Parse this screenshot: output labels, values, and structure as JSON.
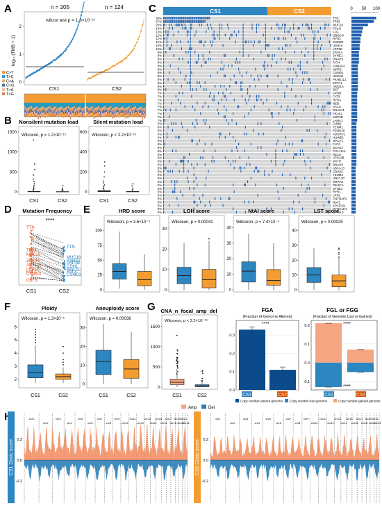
{
  "colors": {
    "cs1": "#2E86C1",
    "cs2": "#F39C32",
    "cs1_dark": "#0B4A8B",
    "cs2_dark": "#D35400",
    "amp": "#F4A582",
    "del": "#2C7FB8"
  },
  "panels": {
    "A": {
      "letter": "A",
      "n_cs1": "n = 205",
      "n_cs2": "n = 124",
      "stat": "wilcox test p = 1.6×10⁻¹²",
      "ylabel": "log₁₀ (TMB + 1)",
      "yticks": [
        "0",
        "1",
        "2"
      ],
      "xlabels": [
        "CS1",
        "CS2"
      ],
      "legend": [
        {
          "label": "C>T",
          "color": "#F39C32"
        },
        {
          "label": "T>C",
          "color": "#1B9BC9"
        },
        {
          "label": "C>A",
          "color": "#E8A878"
        },
        {
          "label": "C>G",
          "color": "#4F6FA8"
        },
        {
          "label": "T>A",
          "color": "#F4B7A0"
        },
        {
          "label": "T>G",
          "color": "#DA7E49"
        }
      ]
    },
    "B": {
      "letter": "B",
      "left": {
        "title": "Nonsilent mutation load",
        "stat": "Wilcoxon, p = 1.2×10⁻¹⁵",
        "yticks": [
          "0",
          "500",
          "1000",
          "1500"
        ],
        "xlabels": [
          "CS1",
          "CS2"
        ]
      },
      "right": {
        "title": "Silent mutation load",
        "stat": "Wilcoxon, p < 2.2×10⁻¹⁶",
        "yticks": [
          "0",
          "200",
          "400",
          "600"
        ],
        "xlabels": [
          "CS1",
          "CS2"
        ]
      }
    },
    "C": {
      "letter": "C",
      "cs1": "CS1",
      "cs2": "CS2",
      "top_axis": [
        "0",
        "50",
        "100"
      ],
      "genes": [
        "TTN",
        "TP53",
        "MUC16",
        "PCLO",
        "FLG",
        "OBSCN",
        "RYR2",
        "CSMD3",
        "USH2A",
        "LRP1B",
        "ZFHX4",
        "SYNE1",
        "DNAH5",
        "FAT4",
        "AHNAK2",
        "XIRP2",
        "CSMD1",
        "HMCN1",
        "PKHD1L1",
        "SPTA1",
        "ARID1A",
        "DST",
        "APOB",
        "FAT3",
        "RYR3",
        "NEB",
        "SACS",
        "DNAH11",
        "FRAS1",
        "KMT2D",
        "LAMA1",
        "CUBN",
        "TENM1",
        "PCDH15",
        "ADGRV1",
        "HUWE1",
        "MACF1",
        "FLG2",
        "DCHS2",
        "COL11A1",
        "RELN",
        "VPS13B",
        "MYH7",
        "DNAH3",
        "ABCA13",
        "CDH23",
        "TENM3",
        "UNC13C",
        "MXRA5",
        "PIK3CA",
        "SYNE2",
        "RYR1",
        "LRP2",
        "CNTNAP2",
        "NAV3",
        "SPATA31",
        "DYNC1H1",
        "SPTAL1"
      ],
      "percents": [
        "30%",
        "27%",
        "20%",
        "14%",
        "13%",
        "12%",
        "11%",
        "11%",
        "10%",
        "10%",
        "9%",
        "9%",
        "9%",
        "9%",
        "8%",
        "8%",
        "8%",
        "8%",
        "8%",
        "8%",
        "8%",
        "8%",
        "7%",
        "7%",
        "7%",
        "7%",
        "7%",
        "7%",
        "7%",
        "7%",
        "7%",
        "6%",
        "6%",
        "6%",
        "6%",
        "6%",
        "6%",
        "6%",
        "6%",
        "6%",
        "6%",
        "6%",
        "6%",
        "6%",
        "5%",
        "5%",
        "5%",
        "5%",
        "5%",
        "5%",
        "5%",
        "5%",
        "5%",
        "5%",
        "5%",
        "5%",
        "5%",
        "5%"
      ],
      "counts": [
        99,
        89,
        66,
        46,
        43,
        40,
        36,
        36,
        33,
        33,
        30,
        30,
        30,
        30,
        26,
        26,
        26,
        26,
        26,
        26,
        26,
        26,
        23,
        23,
        23,
        23,
        23,
        23,
        23,
        23,
        23,
        20,
        20,
        20,
        20,
        20,
        20,
        20,
        20,
        20,
        20,
        20,
        20,
        20,
        17,
        17,
        17,
        17,
        17,
        17,
        17,
        17,
        17,
        17,
        17,
        17,
        17,
        17
      ]
    },
    "D": {
      "letter": "D",
      "title": "Mutation Frequency",
      "sig": "****",
      "xlabels": [
        "CS1",
        "CS2"
      ],
      "cs1_genes": [
        "TTN",
        "TP53",
        "MUC16",
        "ZFHX4",
        "ARID1A",
        "LRP1B",
        "FAT3",
        "CSMD3",
        "CBFB"
      ],
      "cs2_genes": [
        "TTN",
        "CDH1",
        "MUC16",
        "SYNE1",
        "LRP1B",
        "KMT2C",
        "FAT3",
        "CSMD3"
      ]
    },
    "E": {
      "letter": "E",
      "plots": [
        {
          "title": "HRD score",
          "stat": "Wilcoxon, p = 2.6×10⁻⁵",
          "yticks": [
            "0",
            "25",
            "50",
            "75",
            "100"
          ],
          "cs1": [
            2,
            18,
            31,
            44,
            98
          ],
          "cs2": [
            0,
            7,
            17,
            31,
            60
          ],
          "ylim": [
            0,
            110
          ]
        },
        {
          "title": "LOH score",
          "stat": "Wilcoxon, p = 0.00041",
          "yticks": [
            "0",
            "10",
            "20",
            "30"
          ],
          "cs1": [
            0,
            3,
            7,
            11,
            23
          ],
          "cs2": [
            0,
            1,
            5,
            10,
            24
          ],
          "ylim": [
            0,
            32
          ]
        },
        {
          "title": "NtAI score",
          "stat": "Wilcoxon, p = 7.4×10⁻⁴",
          "yticks": [
            "0",
            "10",
            "20",
            "30",
            "40"
          ],
          "cs1": [
            0,
            5,
            12,
            18,
            36
          ],
          "cs2": [
            0,
            3,
            6,
            13,
            30
          ],
          "ylim": [
            0,
            42
          ]
        },
        {
          "title": "LST score",
          "stat": "Wilcoxon, p = 0.00025",
          "yticks": [
            "0",
            "10",
            "20",
            "30",
            "40"
          ],
          "cs1": [
            0,
            5,
            10,
            15,
            28
          ],
          "cs2": [
            0,
            2,
            6,
            10,
            22
          ],
          "ylim": [
            0,
            44
          ]
        }
      ]
    },
    "F": {
      "letter": "F",
      "plots": [
        {
          "title": "Ploidy",
          "stat": "Wilcoxon, p = 1.3×10⁻⁵",
          "yticks": [
            "2",
            "3",
            "4",
            "5",
            "6"
          ],
          "cs1": [
            1.7,
            2.1,
            2.5,
            3.1,
            4.6
          ],
          "cs2": [
            1.7,
            2.0,
            2.2,
            2.4,
            2.9
          ],
          "ylim": [
            1.5,
            6.5
          ]
        },
        {
          "title": "Aneuploidy score",
          "stat": "Wilcoxon, p = 0.00036",
          "yticks": [
            "0",
            "10",
            "20",
            "30"
          ],
          "cs1": [
            0,
            5,
            12,
            18,
            32
          ],
          "cs2": [
            0,
            3,
            8,
            13,
            28
          ],
          "ylim": [
            -1,
            34
          ]
        }
      ]
    },
    "G": {
      "letter": "G",
      "cna": {
        "title": "CNA_n_focal_amp_del",
        "stat": "Wilcoxon, p < 2.2×10⁻¹⁶",
        "yticks": [
          "0",
          "500",
          "1000",
          "1500"
        ]
      },
      "fga": {
        "title": "FGA",
        "subtitle": "(Fraction of Genome Altered)",
        "sig": "****",
        "yticks": [
          "0.0",
          "0.1",
          "0.2",
          "0.3"
        ],
        "values": [
          0.33,
          0.11
        ]
      },
      "fgl": {
        "title": "FGL or FGG",
        "subtitle": "(Fraction of Genome Lost or Gained)",
        "sig_top": "****",
        "sig_bottom": "****",
        "yticks": [
          "-0.1",
          "0.0",
          "0.1",
          "0.2"
        ],
        "gained": [
          0.21,
          0.07
        ],
        "lost": [
          -0.13,
          -0.05
        ]
      },
      "legend": [
        "Copy number-altered genome",
        "Copy number-lost genome",
        "Copy number-gained genome"
      ],
      "xlabels": [
        "CS1",
        "CS2"
      ]
    },
    "H": {
      "letter": "H",
      "legend": [
        "Amp",
        "Del"
      ],
      "left_label": "CS1 Gistic score",
      "right_label": "CS2 Gistic score",
      "yticks": [
        "0.2",
        "0.0",
        "-0.2"
      ],
      "chroms": [
        "chr1",
        "chr2",
        "chr3",
        "chr4",
        "chr5",
        "chr6",
        "chr7",
        "chr8",
        "chr9",
        "chr10",
        "chr11",
        "chr12",
        "chr13",
        "chr14",
        "chr15",
        "chr16",
        "chr17",
        "chr18",
        "chr19",
        "chr20",
        "chr21",
        "chr22"
      ]
    }
  }
}
